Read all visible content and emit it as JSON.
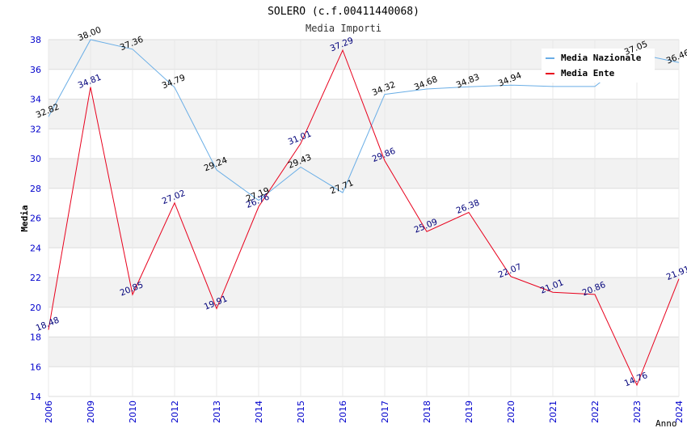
{
  "chart_data": {
    "type": "line",
    "title": "SOLERO (c.f.00411440068)",
    "subtitle": "Media Importi",
    "xlabel": "Anno",
    "ylabel": "Media",
    "ylim": [
      14,
      38
    ],
    "yticks": [
      "14",
      "16",
      "18",
      "20",
      "22",
      "24",
      "26",
      "28",
      "30",
      "32",
      "34",
      "36",
      "38"
    ],
    "categories": [
      "2006",
      "2009",
      "2010",
      "2012",
      "2013",
      "2014",
      "2015",
      "2016",
      "2017",
      "2018",
      "2019",
      "2020",
      "2021",
      "2022",
      "2023",
      "2024"
    ],
    "series": [
      {
        "name": "Media Nazionale",
        "color": "#6aaee6",
        "label_color": "#000000",
        "values": [
          32.82,
          38.0,
          37.36,
          34.79,
          29.24,
          27.19,
          29.43,
          27.71,
          34.32,
          34.68,
          34.83,
          34.94,
          34.85,
          34.85,
          37.05,
          36.46
        ],
        "labels": [
          "32.82",
          "38.00",
          "37.36",
          "34.79",
          "29.24",
          "27.19",
          "29.43",
          "27.71",
          "34.32",
          "34.68",
          "34.83",
          "34.94",
          "",
          "",
          "37.05",
          "36.46"
        ]
      },
      {
        "name": "Media Ente",
        "color": "#e8001c",
        "label_color": "#00007a",
        "values": [
          18.48,
          34.81,
          20.85,
          27.02,
          19.91,
          26.76,
          31.01,
          37.29,
          29.86,
          25.09,
          26.38,
          22.07,
          21.01,
          20.86,
          14.76,
          21.91
        ],
        "labels": [
          "18.48",
          "34.81",
          "20.85",
          "27.02",
          "19.91",
          "26.76",
          "31.01",
          "37.29",
          "29.86",
          "25.09",
          "26.38",
          "22.07",
          "21.01",
          "20.86",
          "14.76",
          "21.91"
        ]
      }
    ],
    "grid": true,
    "legend": "top-right"
  }
}
